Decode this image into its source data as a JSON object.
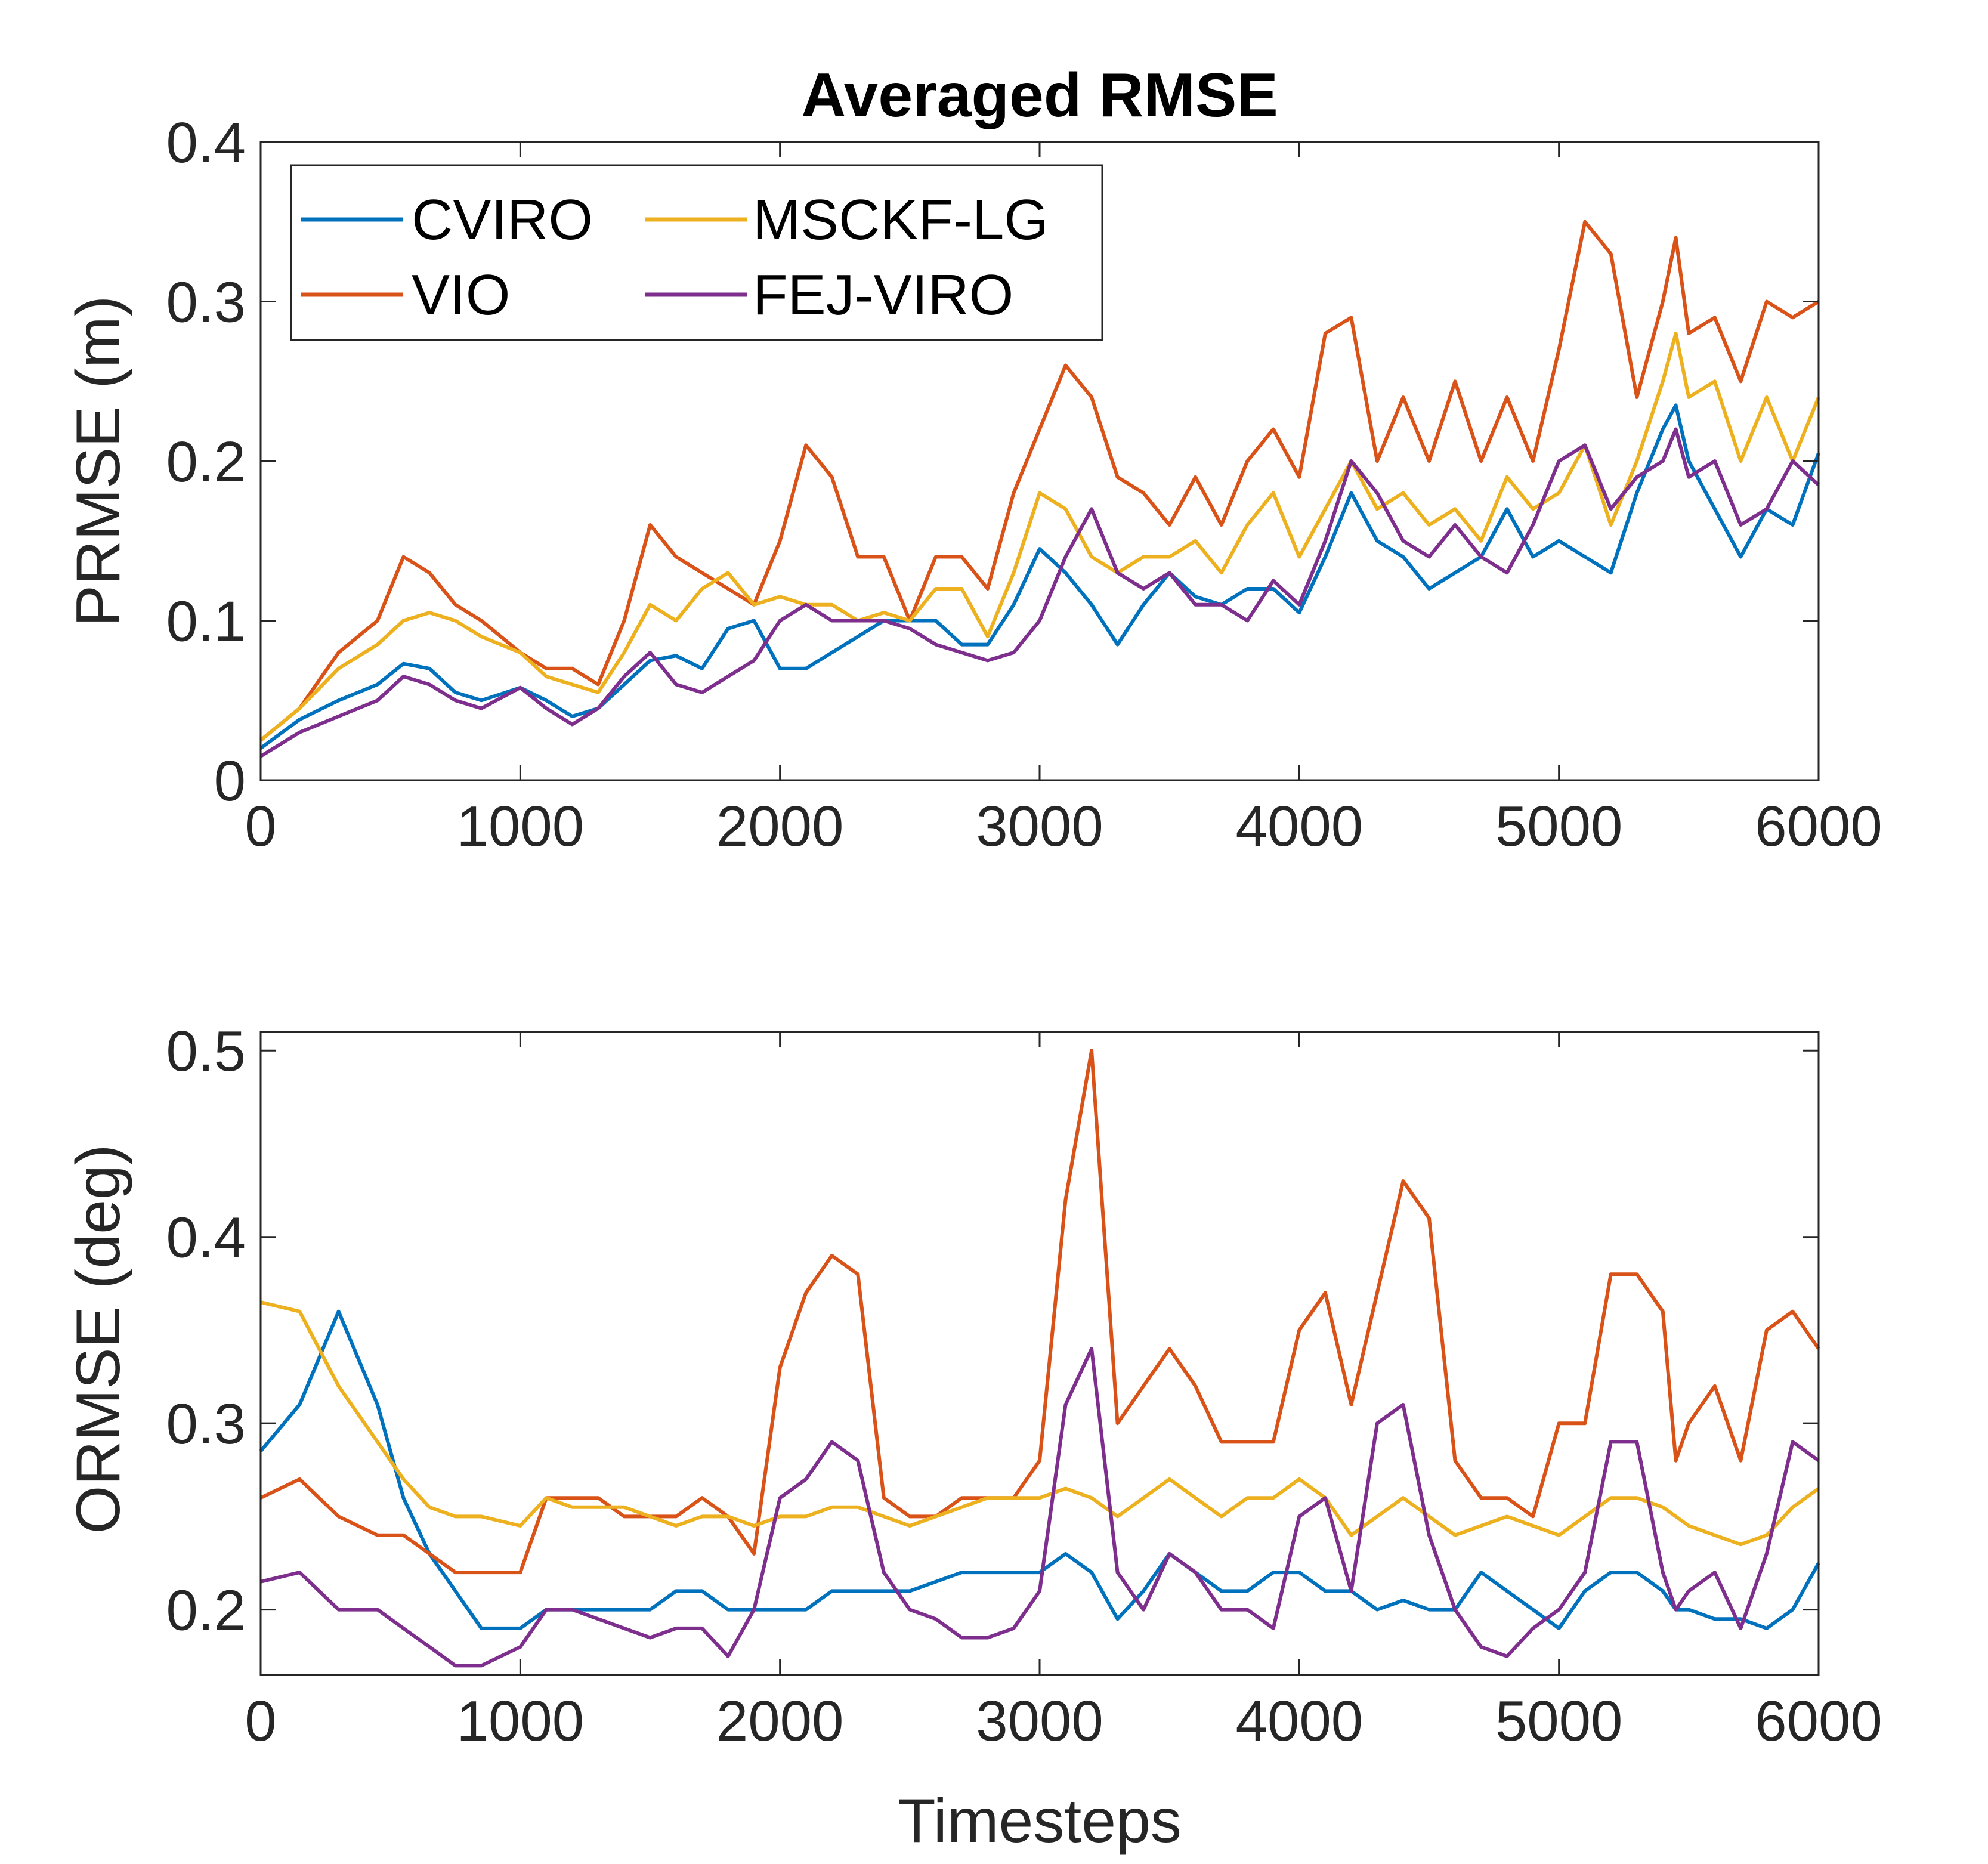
{
  "chart_data": [
    {
      "type": "line",
      "title": "Averaged RMSE",
      "xlabel": "",
      "ylabel": "PRMSE (m)",
      "xlim": [
        0,
        6000
      ],
      "ylim": [
        0,
        0.4
      ],
      "xticks": [
        0,
        1000,
        2000,
        3000,
        4000,
        5000,
        6000
      ],
      "yticks": [
        0,
        0.1,
        0.2,
        0.3,
        0.4
      ],
      "xtick_labels": [
        "0",
        "1000",
        "2000",
        "3000",
        "4000",
        "5000",
        "6000"
      ],
      "ytick_labels": [
        "0",
        "0.1",
        "0.2",
        "0.3",
        "0.4"
      ],
      "legend": {
        "placement": "top-left",
        "columns": 2,
        "order": [
          "CVIRO",
          "MSCKF-LG",
          "VIO",
          "FEJ-VIRO"
        ]
      },
      "grid": false,
      "x": [
        0,
        150,
        300,
        450,
        550,
        650,
        750,
        850,
        1000,
        1100,
        1200,
        1300,
        1400,
        1500,
        1600,
        1700,
        1800,
        1900,
        2000,
        2100,
        2200,
        2300,
        2400,
        2500,
        2600,
        2700,
        2800,
        2900,
        3000,
        3100,
        3200,
        3300,
        3400,
        3500,
        3600,
        3700,
        3800,
        3900,
        4000,
        4100,
        4200,
        4300,
        4400,
        4500,
        4600,
        4700,
        4800,
        4900,
        5000,
        5100,
        5200,
        5300,
        5400,
        5450,
        5500,
        5600,
        5700,
        5800,
        5900,
        6000
      ],
      "series": [
        {
          "name": "CVIRO",
          "color": "#0072BD",
          "values": [
            0.02,
            0.038,
            0.05,
            0.06,
            0.073,
            0.07,
            0.055,
            0.05,
            0.058,
            0.05,
            0.04,
            0.045,
            0.06,
            0.075,
            0.078,
            0.07,
            0.095,
            0.1,
            0.07,
            0.07,
            0.08,
            0.09,
            0.1,
            0.1,
            0.1,
            0.085,
            0.085,
            0.11,
            0.145,
            0.13,
            0.11,
            0.085,
            0.11,
            0.13,
            0.115,
            0.11,
            0.12,
            0.12,
            0.105,
            0.14,
            0.18,
            0.15,
            0.14,
            0.12,
            0.13,
            0.14,
            0.17,
            0.14,
            0.15,
            0.14,
            0.13,
            0.18,
            0.22,
            0.235,
            0.2,
            0.17,
            0.14,
            0.17,
            0.16,
            0.205
          ]
        },
        {
          "name": "VIO",
          "color": "#D95319",
          "values": [
            0.025,
            0.045,
            0.08,
            0.1,
            0.14,
            0.13,
            0.11,
            0.1,
            0.08,
            0.07,
            0.07,
            0.06,
            0.1,
            0.16,
            0.14,
            0.13,
            0.12,
            0.11,
            0.15,
            0.21,
            0.19,
            0.14,
            0.14,
            0.1,
            0.14,
            0.14,
            0.12,
            0.18,
            0.22,
            0.26,
            0.24,
            0.19,
            0.18,
            0.16,
            0.19,
            0.16,
            0.2,
            0.22,
            0.19,
            0.28,
            0.29,
            0.2,
            0.24,
            0.2,
            0.25,
            0.2,
            0.24,
            0.2,
            0.27,
            0.35,
            0.33,
            0.24,
            0.3,
            0.34,
            0.28,
            0.29,
            0.25,
            0.3,
            0.29,
            0.3
          ]
        },
        {
          "name": "MSCKF-LG",
          "color": "#EDB120",
          "values": [
            0.025,
            0.045,
            0.07,
            0.085,
            0.1,
            0.105,
            0.1,
            0.09,
            0.08,
            0.065,
            0.06,
            0.055,
            0.08,
            0.11,
            0.1,
            0.12,
            0.13,
            0.11,
            0.115,
            0.11,
            0.11,
            0.1,
            0.105,
            0.1,
            0.12,
            0.12,
            0.09,
            0.13,
            0.18,
            0.17,
            0.14,
            0.13,
            0.14,
            0.14,
            0.15,
            0.13,
            0.16,
            0.18,
            0.14,
            0.17,
            0.2,
            0.17,
            0.18,
            0.16,
            0.17,
            0.15,
            0.19,
            0.17,
            0.18,
            0.21,
            0.16,
            0.2,
            0.25,
            0.28,
            0.24,
            0.25,
            0.2,
            0.24,
            0.2,
            0.24
          ]
        },
        {
          "name": "FEJ-VIRO",
          "color": "#7E2F8E",
          "values": [
            0.015,
            0.03,
            0.04,
            0.05,
            0.065,
            0.06,
            0.05,
            0.045,
            0.058,
            0.045,
            0.035,
            0.045,
            0.065,
            0.08,
            0.06,
            0.055,
            0.065,
            0.075,
            0.1,
            0.11,
            0.1,
            0.1,
            0.1,
            0.095,
            0.085,
            0.08,
            0.075,
            0.08,
            0.1,
            0.14,
            0.17,
            0.13,
            0.12,
            0.13,
            0.11,
            0.11,
            0.1,
            0.125,
            0.11,
            0.15,
            0.2,
            0.18,
            0.15,
            0.14,
            0.16,
            0.14,
            0.13,
            0.16,
            0.2,
            0.21,
            0.17,
            0.19,
            0.2,
            0.22,
            0.19,
            0.2,
            0.16,
            0.17,
            0.2,
            0.185
          ]
        }
      ]
    },
    {
      "type": "line",
      "title": "",
      "xlabel": "Timesteps",
      "ylabel": "ORMSE (deg)",
      "xlim": [
        0,
        6000
      ],
      "ylim": [
        0.165,
        0.51
      ],
      "xticks": [
        0,
        1000,
        2000,
        3000,
        4000,
        5000,
        6000
      ],
      "yticks": [
        0.2,
        0.3,
        0.4,
        0.5
      ],
      "xtick_labels": [
        "0",
        "1000",
        "2000",
        "3000",
        "4000",
        "5000",
        "6000"
      ],
      "ytick_labels": [
        "0.2",
        "0.3",
        "0.4",
        "0.5"
      ],
      "grid": false,
      "x": [
        0,
        150,
        300,
        450,
        550,
        650,
        750,
        850,
        1000,
        1100,
        1200,
        1300,
        1400,
        1500,
        1600,
        1700,
        1800,
        1900,
        2000,
        2100,
        2200,
        2300,
        2400,
        2500,
        2600,
        2700,
        2800,
        2900,
        3000,
        3100,
        3200,
        3300,
        3400,
        3500,
        3600,
        3700,
        3800,
        3900,
        4000,
        4100,
        4200,
        4300,
        4400,
        4500,
        4600,
        4700,
        4800,
        4900,
        5000,
        5100,
        5200,
        5300,
        5400,
        5450,
        5500,
        5600,
        5700,
        5800,
        5900,
        6000
      ],
      "series": [
        {
          "name": "CVIRO",
          "color": "#0072BD",
          "values": [
            0.285,
            0.31,
            0.36,
            0.31,
            0.26,
            0.23,
            0.21,
            0.19,
            0.19,
            0.2,
            0.2,
            0.2,
            0.2,
            0.2,
            0.21,
            0.21,
            0.2,
            0.2,
            0.2,
            0.2,
            0.21,
            0.21,
            0.21,
            0.21,
            0.215,
            0.22,
            0.22,
            0.22,
            0.22,
            0.23,
            0.22,
            0.195,
            0.21,
            0.23,
            0.22,
            0.21,
            0.21,
            0.22,
            0.22,
            0.21,
            0.21,
            0.2,
            0.205,
            0.2,
            0.2,
            0.22,
            0.21,
            0.2,
            0.19,
            0.21,
            0.22,
            0.22,
            0.21,
            0.2,
            0.2,
            0.195,
            0.195,
            0.19,
            0.2,
            0.225
          ]
        },
        {
          "name": "VIO",
          "color": "#D95319",
          "values": [
            0.26,
            0.27,
            0.25,
            0.24,
            0.24,
            0.23,
            0.22,
            0.22,
            0.22,
            0.26,
            0.26,
            0.26,
            0.25,
            0.25,
            0.25,
            0.26,
            0.25,
            0.23,
            0.33,
            0.37,
            0.39,
            0.38,
            0.26,
            0.25,
            0.25,
            0.26,
            0.26,
            0.26,
            0.28,
            0.42,
            0.5,
            0.3,
            0.32,
            0.34,
            0.32,
            0.29,
            0.29,
            0.29,
            0.35,
            0.37,
            0.31,
            0.37,
            0.43,
            0.41,
            0.28,
            0.26,
            0.26,
            0.25,
            0.3,
            0.3,
            0.38,
            0.38,
            0.36,
            0.28,
            0.3,
            0.32,
            0.28,
            0.35,
            0.36,
            0.34
          ]
        },
        {
          "name": "MSCKF-LG",
          "color": "#EDB120",
          "values": [
            0.365,
            0.36,
            0.32,
            0.29,
            0.27,
            0.255,
            0.25,
            0.25,
            0.245,
            0.26,
            0.255,
            0.255,
            0.255,
            0.25,
            0.245,
            0.25,
            0.25,
            0.245,
            0.25,
            0.25,
            0.255,
            0.255,
            0.25,
            0.245,
            0.25,
            0.255,
            0.26,
            0.26,
            0.26,
            0.265,
            0.26,
            0.25,
            0.26,
            0.27,
            0.26,
            0.25,
            0.26,
            0.26,
            0.27,
            0.26,
            0.24,
            0.25,
            0.26,
            0.25,
            0.24,
            0.245,
            0.25,
            0.245,
            0.24,
            0.25,
            0.26,
            0.26,
            0.255,
            0.25,
            0.245,
            0.24,
            0.235,
            0.24,
            0.255,
            0.265
          ]
        },
        {
          "name": "FEJ-VIRO",
          "color": "#7E2F8E",
          "values": [
            0.215,
            0.22,
            0.2,
            0.2,
            0.19,
            0.18,
            0.17,
            0.17,
            0.18,
            0.2,
            0.2,
            0.195,
            0.19,
            0.185,
            0.19,
            0.19,
            0.175,
            0.2,
            0.26,
            0.27,
            0.29,
            0.28,
            0.22,
            0.2,
            0.195,
            0.185,
            0.185,
            0.19,
            0.21,
            0.31,
            0.34,
            0.22,
            0.2,
            0.23,
            0.22,
            0.2,
            0.2,
            0.19,
            0.25,
            0.26,
            0.21,
            0.3,
            0.31,
            0.24,
            0.2,
            0.18,
            0.175,
            0.19,
            0.2,
            0.22,
            0.29,
            0.29,
            0.22,
            0.2,
            0.21,
            0.22,
            0.19,
            0.23,
            0.29,
            0.28
          ]
        }
      ]
    }
  ]
}
